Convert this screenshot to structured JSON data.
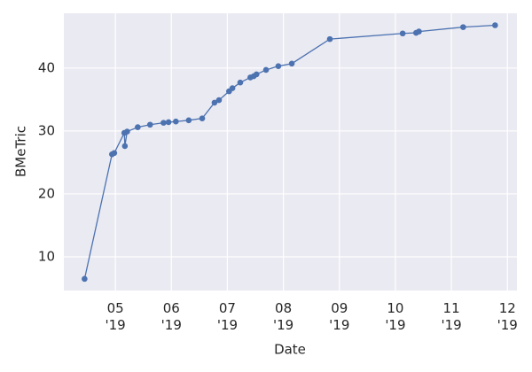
{
  "chart_data": {
    "type": "line",
    "x_label": "Date",
    "y_label": "BMeTric",
    "series": [
      {
        "color": "#4c72b0",
        "x": [
          4.45,
          4.94,
          4.98,
          5.16,
          5.17,
          5.21,
          5.4,
          5.62,
          5.86,
          5.95,
          6.08,
          6.31,
          6.55,
          6.77,
          6.85,
          7.03,
          7.09,
          7.23,
          7.41,
          7.47,
          7.52,
          7.69,
          7.91,
          8.15,
          8.83,
          10.13,
          10.37,
          10.42,
          11.21,
          11.78
        ],
        "values": [
          6.5,
          26.3,
          26.5,
          29.7,
          27.6,
          29.9,
          30.6,
          31.0,
          31.3,
          31.4,
          31.5,
          31.7,
          32.0,
          34.5,
          34.9,
          36.3,
          36.8,
          37.7,
          38.5,
          38.7,
          39.0,
          39.7,
          40.3,
          40.7,
          44.6,
          45.5,
          45.6,
          45.8,
          46.5,
          46.8
        ]
      }
    ],
    "xlim": [
      4.08,
      12.17
    ],
    "xticks": [
      {
        "value": 5,
        "label": "05\n'19"
      },
      {
        "value": 6,
        "label": "06\n'19"
      },
      {
        "value": 7,
        "label": "07\n'19"
      },
      {
        "value": 8,
        "label": "08\n'19"
      },
      {
        "value": 9,
        "label": "09\n'19"
      },
      {
        "value": 10,
        "label": "10\n'19"
      },
      {
        "value": 11,
        "label": "11\n'19"
      },
      {
        "value": 12,
        "label": "12\n'19"
      }
    ],
    "ylim": [
      4.65,
      48.7
    ],
    "yticks": [
      10,
      20,
      30,
      40
    ],
    "grid": true
  }
}
